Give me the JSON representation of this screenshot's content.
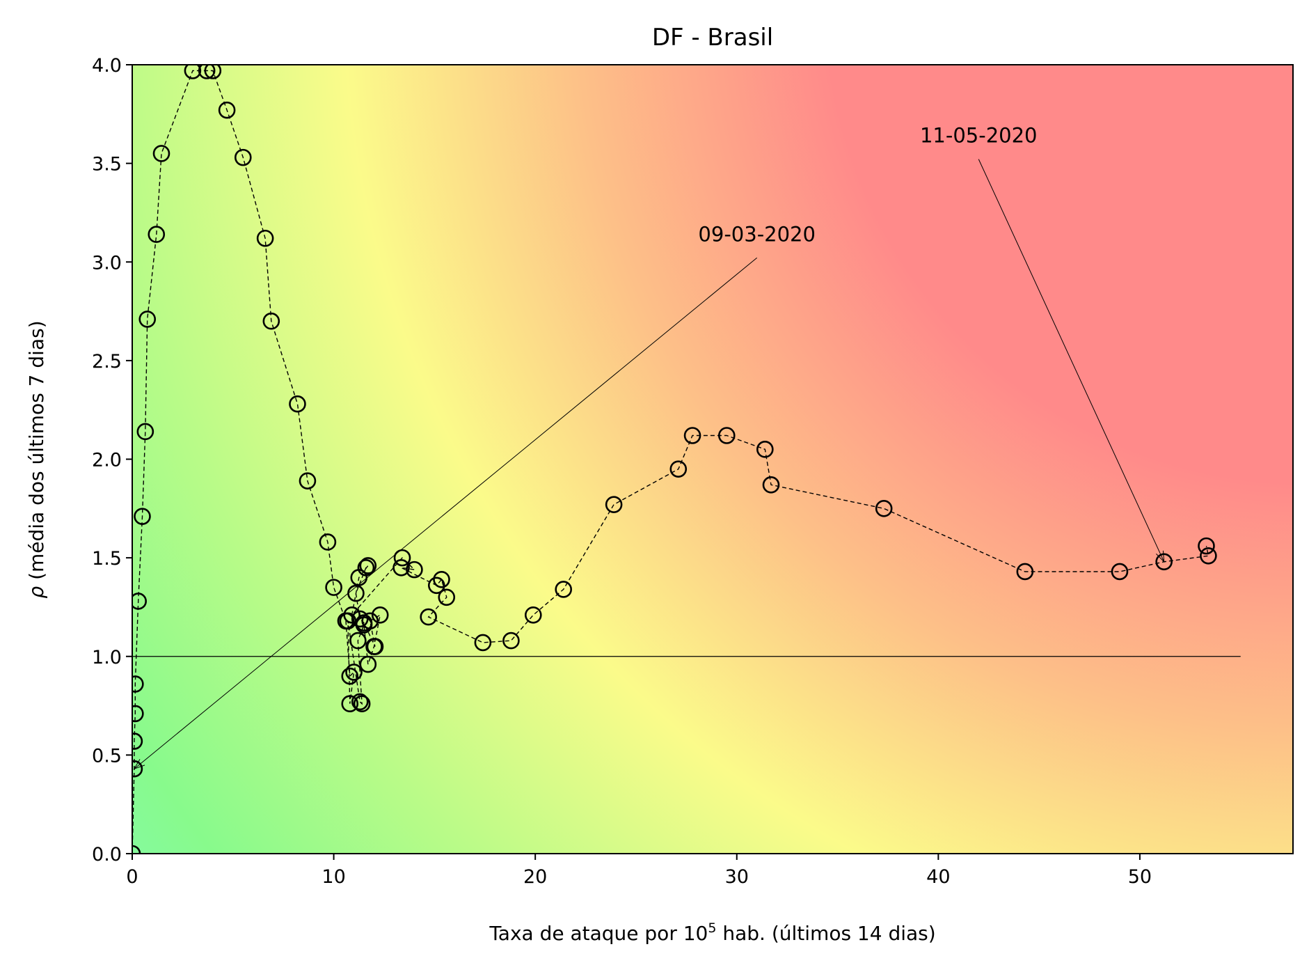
{
  "chart_data": {
    "type": "scatter",
    "title": "DF - Brasil",
    "xlabel": "Taxa de ataque por 10",
    "xlabel_sup": "5",
    "xlabel_suffix": " hab. (últimos 14 dias)",
    "ylabel_symbol": "ρ",
    "ylabel": " (média dos últimos 7 dias)",
    "xlim": [
      0,
      57.6
    ],
    "ylim": [
      0,
      4.0
    ],
    "xticks": [
      0,
      10,
      20,
      30,
      40,
      50
    ],
    "xtick_labels": [
      "0",
      "10",
      "20",
      "30",
      "40",
      "50"
    ],
    "yticks": [
      0.0,
      0.5,
      1.0,
      1.5,
      2.0,
      2.5,
      3.0,
      3.5,
      4.0
    ],
    "ytick_labels": [
      "0.0",
      "0.5",
      "1.0",
      "1.5",
      "2.0",
      "2.5",
      "3.0",
      "3.5",
      "4.0"
    ],
    "reference_line": {
      "y": 1.0,
      "x_range": [
        0,
        55
      ]
    },
    "background": "gradient green (low risk) → yellow → red (high risk)",
    "colors": {
      "green": "#7dfa92",
      "yellow": "#fbfb8a",
      "red": "#ff8a8a",
      "marker_edge": "#000000"
    },
    "grid": false,
    "series": [
      {
        "marker": "open-circle",
        "line": "dashed",
        "x": [
          0,
          0.1,
          0.1,
          0.15,
          0.15,
          0.3,
          0.5,
          0.65,
          0.75,
          1.2,
          1.45,
          3.0,
          3.7,
          4.0,
          4.7,
          5.5,
          6.6,
          6.9,
          8.2,
          8.7,
          9.7,
          10.0,
          10.6,
          10.8,
          11.0,
          10.8,
          10.7,
          11.3,
          11.4,
          11.2,
          11.5,
          11.7,
          12.0,
          12.3,
          11.8,
          12.05,
          11.5,
          11.3,
          11.1,
          11.6,
          11.7,
          11.25,
          10.9,
          13.4,
          14.0,
          13.35,
          15.1,
          15.35,
          15.6,
          14.7,
          17.4,
          18.8,
          19.9,
          21.4,
          23.9,
          27.1,
          27.8,
          29.5,
          31.4,
          31.7,
          37.3,
          44.3,
          49.0,
          51.2,
          53.4,
          53.3
        ],
        "y": [
          0.0,
          0.43,
          0.57,
          0.71,
          0.86,
          1.28,
          1.71,
          2.14,
          2.71,
          3.14,
          3.55,
          3.97,
          3.97,
          3.97,
          3.77,
          3.53,
          3.12,
          2.7,
          2.28,
          1.89,
          1.58,
          1.35,
          1.18,
          0.9,
          0.92,
          0.76,
          1.18,
          0.77,
          0.76,
          1.08,
          1.16,
          0.96,
          1.05,
          1.21,
          1.18,
          1.05,
          1.17,
          1.19,
          1.32,
          1.45,
          1.46,
          1.4,
          1.21,
          1.5,
          1.44,
          1.45,
          1.36,
          1.39,
          1.3,
          1.2,
          1.07,
          1.08,
          1.21,
          1.34,
          1.77,
          1.95,
          2.12,
          2.12,
          2.05,
          1.87,
          1.75,
          1.43,
          1.43,
          1.48,
          1.51,
          1.56
        ]
      }
    ],
    "annotations": [
      {
        "text": "09-03-2020",
        "point": [
          0.1,
          0.43
        ],
        "label_at": [
          31.0,
          3.0
        ]
      },
      {
        "text": "11-05-2020",
        "point": [
          51.2,
          1.48
        ],
        "label_at": [
          42.0,
          3.5
        ]
      }
    ]
  }
}
